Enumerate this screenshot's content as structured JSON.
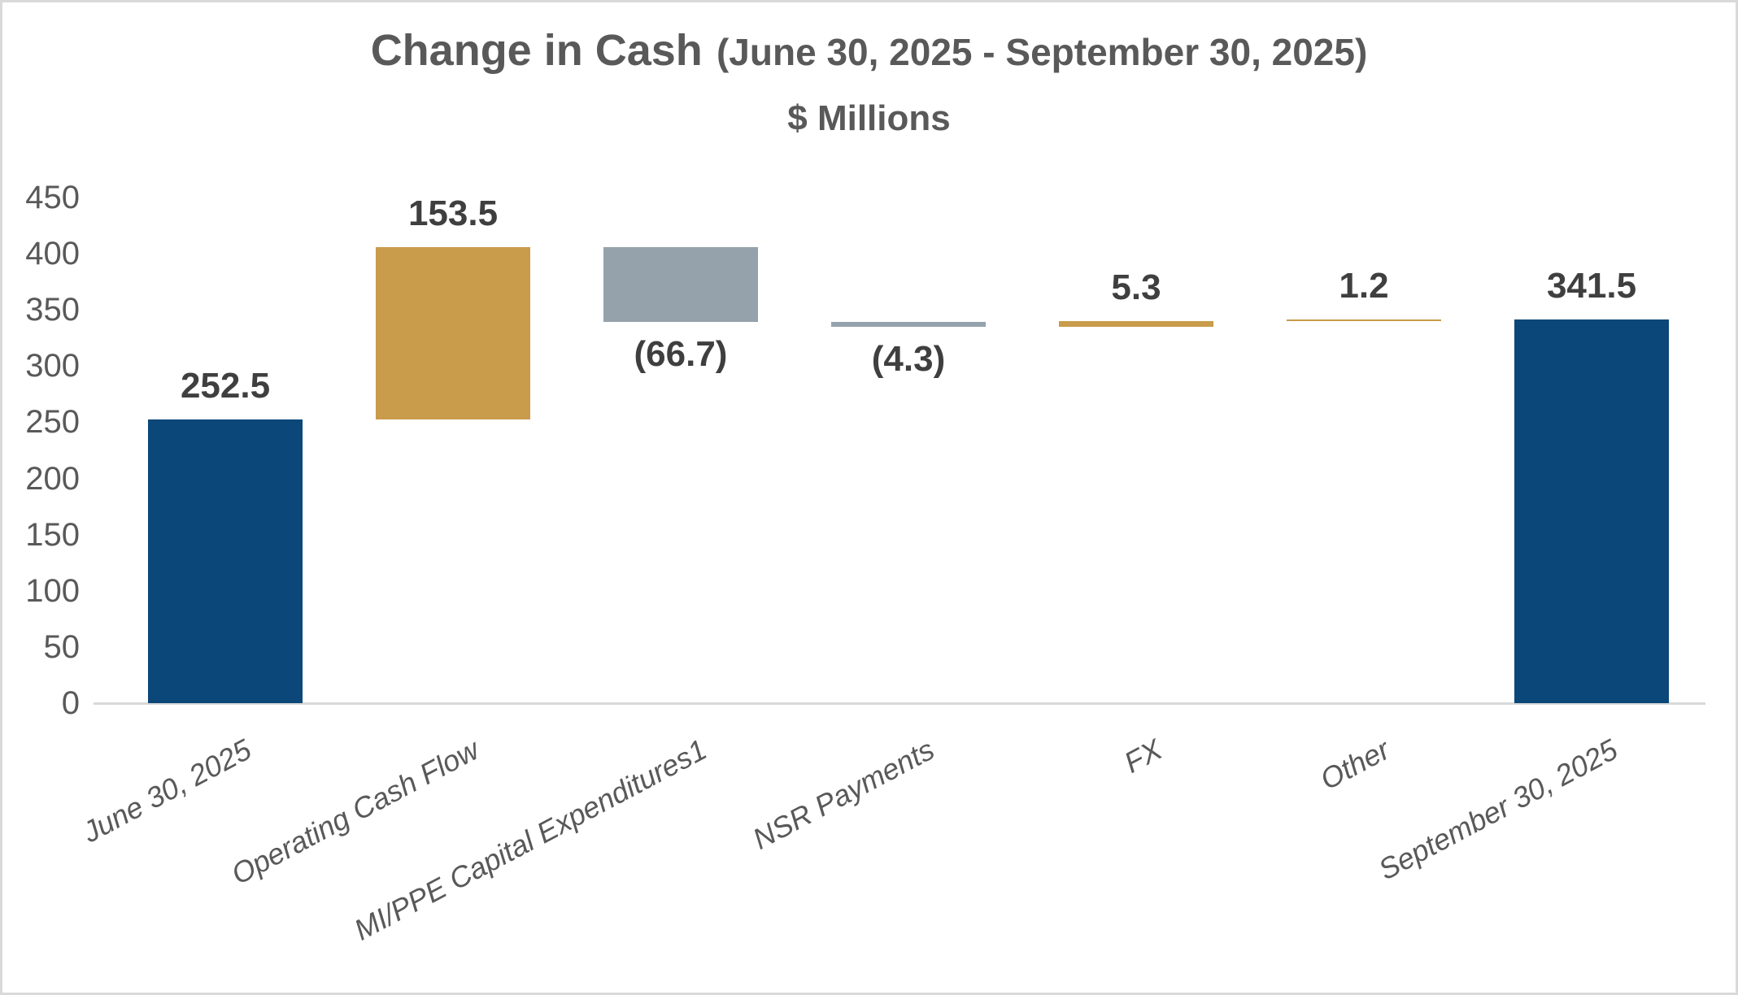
{
  "title": {
    "main": "Change in Cash",
    "range": "(June 30, 2025 - September 30, 2025)",
    "subtitle": "$ Millions"
  },
  "chart_data": {
    "type": "bar",
    "subtype": "waterfall",
    "title": "Change in Cash (June 30, 2025 - September 30, 2025)",
    "units_label": "$ Millions",
    "grid": false,
    "legend": false,
    "categories": [
      "June 30, 2025",
      "Operating Cash Flow",
      "MI/PPE Capital Expenditures1",
      "NSR Payments",
      "FX",
      "Other",
      "September 30, 2025"
    ],
    "bars": [
      {
        "category": "June 30, 2025",
        "label": "252.5",
        "value": 252.5,
        "start": 0,
        "end": 252.5,
        "color_key": "navy",
        "label_position": "above",
        "kind": "total"
      },
      {
        "category": "Operating Cash Flow",
        "label": "153.5",
        "value": 153.5,
        "start": 252.5,
        "end": 406.0,
        "color_key": "gold",
        "label_position": "above",
        "kind": "increase"
      },
      {
        "category": "MI/PPE Capital Expenditures1",
        "label": "(66.7)",
        "value": -66.7,
        "start": 406.0,
        "end": 339.3,
        "color_key": "gray",
        "label_position": "below",
        "kind": "decrease"
      },
      {
        "category": "NSR Payments",
        "label": "(4.3)",
        "value": -4.3,
        "start": 339.3,
        "end": 335.0,
        "color_key": "gray",
        "label_position": "below",
        "kind": "decrease"
      },
      {
        "category": "FX",
        "label": "5.3",
        "value": 5.3,
        "start": 335.0,
        "end": 340.3,
        "color_key": "gold",
        "label_position": "above",
        "kind": "increase"
      },
      {
        "category": "Other",
        "label": "1.2",
        "value": 1.2,
        "start": 340.3,
        "end": 341.5,
        "color_key": "gold",
        "label_position": "above",
        "kind": "increase"
      },
      {
        "category": "September 30, 2025",
        "label": "341.5",
        "value": 341.5,
        "start": 0,
        "end": 341.5,
        "color_key": "navy",
        "label_position": "above",
        "kind": "total"
      }
    ],
    "y_axis": {
      "min": 0,
      "max": 450,
      "ticks": [
        0,
        50,
        100,
        150,
        200,
        250,
        300,
        350,
        400,
        450
      ]
    },
    "colors": {
      "navy": "#0b4778",
      "gold": "#c89c4a",
      "gray": "#95a2ab"
    }
  }
}
